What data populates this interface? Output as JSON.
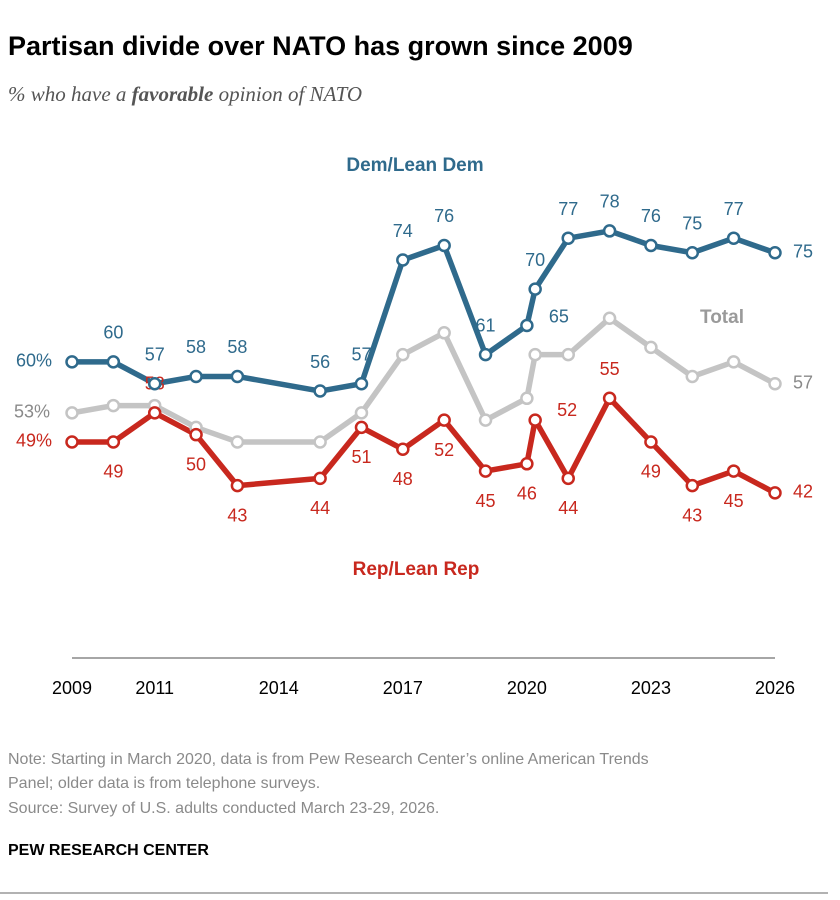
{
  "chart_data": {
    "type": "line",
    "title": "Partisan divide over NATO has grown since 2009",
    "subtitle": [
      "% who have a ",
      "favorable",
      " opinion of NATO"
    ],
    "x": [
      2009,
      2010,
      2011,
      2012,
      2013,
      2015,
      2016,
      2017,
      2018,
      2019,
      2020,
      2020.2,
      2021,
      2022,
      2023,
      2024,
      2025,
      2026
    ],
    "xlim": [
      2009,
      2026
    ],
    "xticks": [
      2009,
      2011,
      2014,
      2017,
      2020,
      2023,
      2026
    ],
    "ylim": [
      20,
      90
    ],
    "series": [
      {
        "name": "Dem/Lean Dem",
        "color": "#2f6a8c",
        "values": [
          60,
          60,
          57,
          58,
          58,
          56,
          57,
          74,
          76,
          61,
          65,
          70,
          77,
          78,
          76,
          75,
          77,
          75
        ],
        "value_labels": [
          "60%",
          "60",
          "57",
          "58",
          "58",
          "56",
          "57",
          "74",
          "76",
          "61",
          "65",
          "70",
          "77",
          "78",
          "76",
          "75",
          "77",
          "75"
        ]
      },
      {
        "name": "Total",
        "color": "#c4c4c4",
        "values": [
          53,
          54,
          54,
          51,
          49,
          49,
          53,
          61,
          64,
          52,
          55,
          61,
          61,
          66,
          62,
          58,
          60,
          57
        ],
        "value_labels": [
          "53%",
          null,
          null,
          null,
          null,
          null,
          null,
          null,
          null,
          null,
          null,
          null,
          null,
          null,
          null,
          null,
          null,
          "57"
        ]
      },
      {
        "name": "Rep/Lean Rep",
        "color": "#c8281e",
        "values": [
          49,
          49,
          53,
          50,
          43,
          44,
          51,
          48,
          52,
          45,
          46,
          52,
          44,
          55,
          49,
          43,
          45,
          42
        ],
        "value_labels": [
          "49%",
          "49",
          "53",
          "50",
          "43",
          "44",
          "51",
          "48",
          "52",
          "45",
          "46",
          "52",
          "44",
          "55",
          "49",
          "43",
          "45",
          "42"
        ]
      }
    ],
    "note": [
      "Note: Starting in March 2020, data is from Pew Research Center’s online American Trends",
      "Panel; older data is from telephone surveys."
    ],
    "source": "Source: Survey of U.S. adults conducted March 23-29, 2026.",
    "footer": "PEW RESEARCH CENTER"
  }
}
